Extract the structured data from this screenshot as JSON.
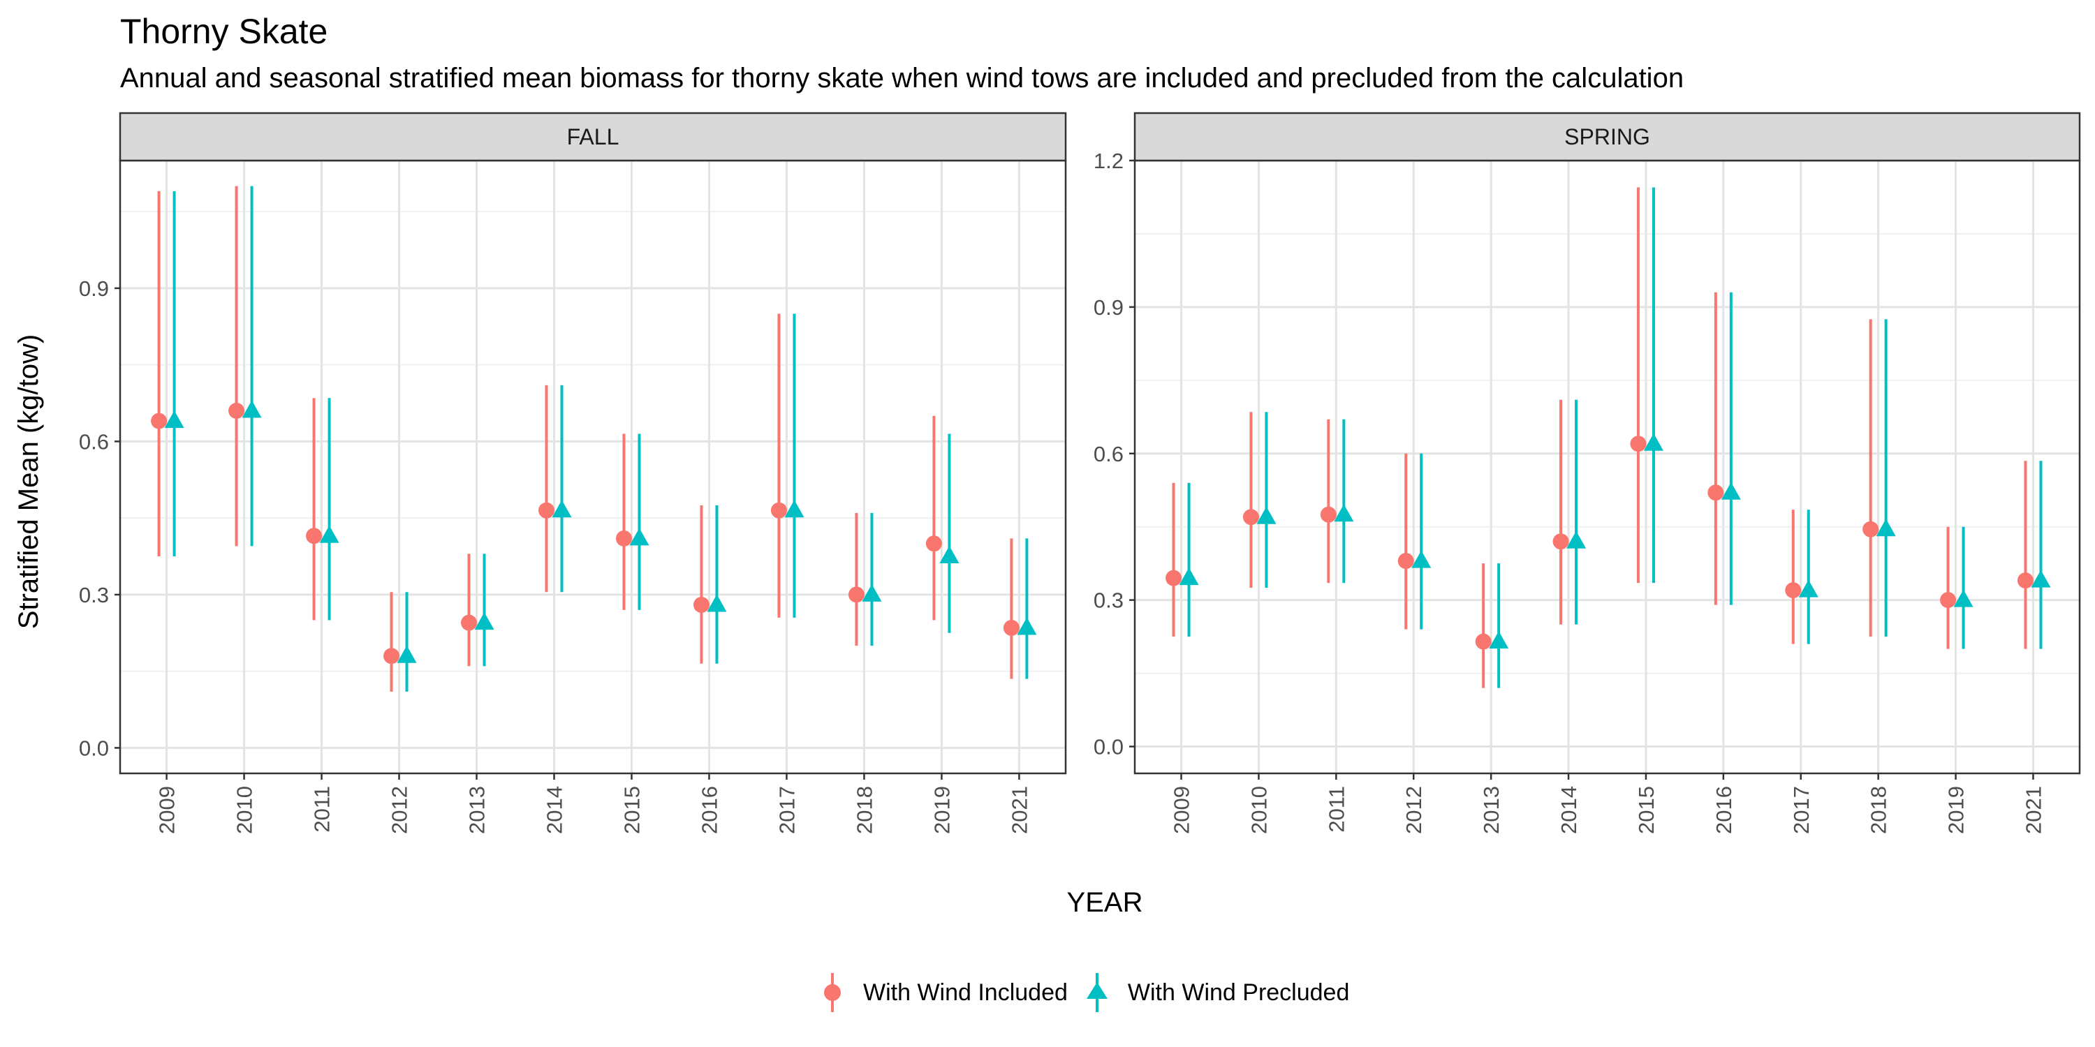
{
  "chart_data": {
    "type": "scatter",
    "title": "Thorny Skate",
    "subtitle": "Annual and seasonal stratified mean biomass for thorny skate when wind tows are included and precluded from the calculation",
    "xlabel": "YEAR",
    "ylabel": "Stratified Mean (kg/tow)",
    "grid": true,
    "legend_position": "bottom",
    "legend": [
      {
        "name": "With Wind Included",
        "color": "#F8766D",
        "shape": "circle"
      },
      {
        "name": "With Wind Precluded",
        "color": "#00BFC4",
        "shape": "triangle"
      }
    ],
    "categories": [
      "2009",
      "2010",
      "2011",
      "2012",
      "2013",
      "2014",
      "2015",
      "2016",
      "2017",
      "2018",
      "2019",
      "2021"
    ],
    "panels": [
      {
        "name": "FALL",
        "ylim": [
          -0.05,
          1.15
        ],
        "yticks": [
          0.0,
          0.3,
          0.6,
          0.9
        ],
        "series": [
          {
            "name": "With Wind Included",
            "values": [
              0.64,
              0.66,
              0.415,
              0.18,
              0.245,
              0.465,
              0.41,
              0.28,
              0.465,
              0.3,
              0.4,
              0.235
            ],
            "lower": [
              0.375,
              0.395,
              0.25,
              0.11,
              0.16,
              0.305,
              0.27,
              0.165,
              0.255,
              0.2,
              0.25,
              0.135
            ],
            "upper": [
              1.09,
              1.1,
              0.685,
              0.305,
              0.38,
              0.71,
              0.615,
              0.475,
              0.85,
              0.46,
              0.65,
              0.41
            ]
          },
          {
            "name": "With Wind Precluded",
            "values": [
              0.64,
              0.66,
              0.415,
              0.18,
              0.245,
              0.465,
              0.41,
              0.28,
              0.465,
              0.3,
              0.375,
              0.235
            ],
            "lower": [
              0.375,
              0.395,
              0.25,
              0.11,
              0.16,
              0.305,
              0.27,
              0.165,
              0.255,
              0.2,
              0.225,
              0.135
            ],
            "upper": [
              1.09,
              1.1,
              0.685,
              0.305,
              0.38,
              0.71,
              0.615,
              0.475,
              0.85,
              0.46,
              0.615,
              0.41
            ]
          }
        ]
      },
      {
        "name": "SPRING",
        "ylim": [
          -0.055,
          1.2
        ],
        "yticks": [
          0.0,
          0.3,
          0.6,
          0.9,
          1.2
        ],
        "series": [
          {
            "name": "With Wind Included",
            "values": [
              0.345,
              0.47,
              0.475,
              0.38,
              0.215,
              0.42,
              0.62,
              0.52,
              0.32,
              0.445,
              0.3,
              0.34
            ],
            "lower": [
              0.225,
              0.325,
              0.335,
              0.24,
              0.12,
              0.25,
              0.335,
              0.29,
              0.21,
              0.225,
              0.2,
              0.2
            ],
            "upper": [
              0.54,
              0.685,
              0.67,
              0.6,
              0.375,
              0.71,
              1.145,
              0.93,
              0.485,
              0.875,
              0.45,
              0.585
            ]
          },
          {
            "name": "With Wind Precluded",
            "values": [
              0.345,
              0.47,
              0.475,
              0.38,
              0.215,
              0.42,
              0.62,
              0.52,
              0.32,
              0.445,
              0.3,
              0.34
            ],
            "lower": [
              0.225,
              0.325,
              0.335,
              0.24,
              0.12,
              0.25,
              0.335,
              0.29,
              0.21,
              0.225,
              0.2,
              0.2
            ],
            "upper": [
              0.54,
              0.685,
              0.67,
              0.6,
              0.375,
              0.71,
              1.145,
              0.93,
              0.485,
              0.875,
              0.45,
              0.585
            ]
          }
        ]
      }
    ]
  }
}
